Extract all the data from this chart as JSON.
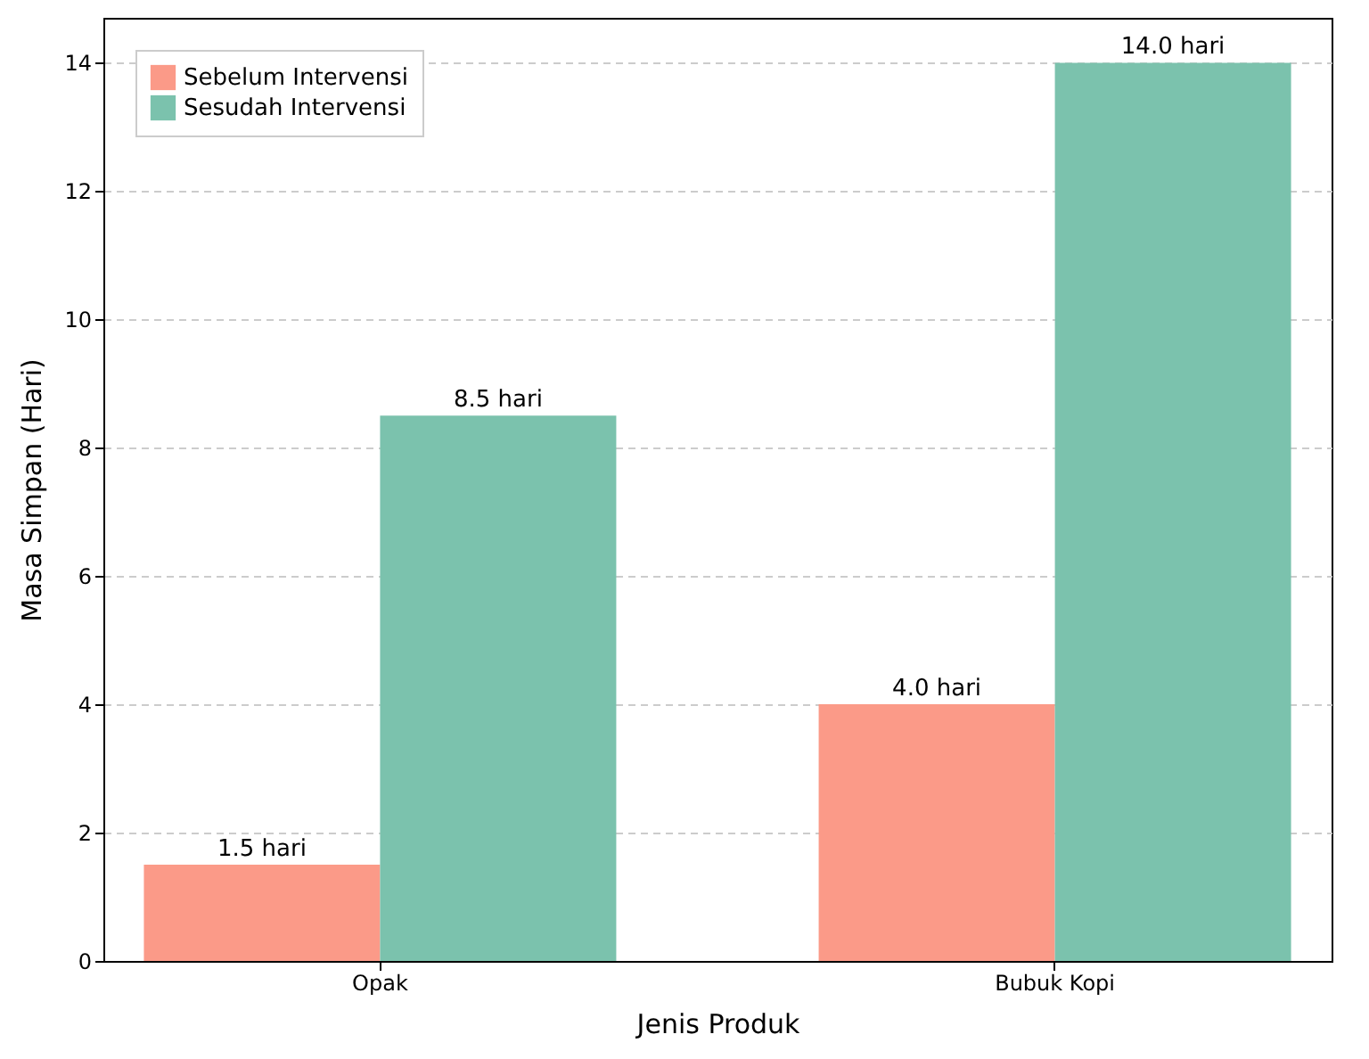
{
  "chart_data": {
    "type": "bar",
    "xlabel": "Jenis Produk",
    "ylabel": "Masa Simpan (Hari)",
    "categories": [
      "Opak",
      "Bubuk Kopi"
    ],
    "series": [
      {
        "name": "Sebelum Intervensi",
        "color": "#fb9a88",
        "values": [
          1.5,
          4.0
        ],
        "value_labels": [
          "1.5 hari",
          "4.0 hari"
        ]
      },
      {
        "name": "Sesudah Intervensi",
        "color": "#7bc2ad",
        "values": [
          8.5,
          14.0
        ],
        "value_labels": [
          "8.5 hari",
          "14.0 hari"
        ]
      }
    ],
    "ylim": [
      0,
      14.7
    ],
    "yticks": [
      0,
      2,
      4,
      6,
      8,
      10,
      12,
      14
    ],
    "grid": "y",
    "legend": "top left"
  }
}
